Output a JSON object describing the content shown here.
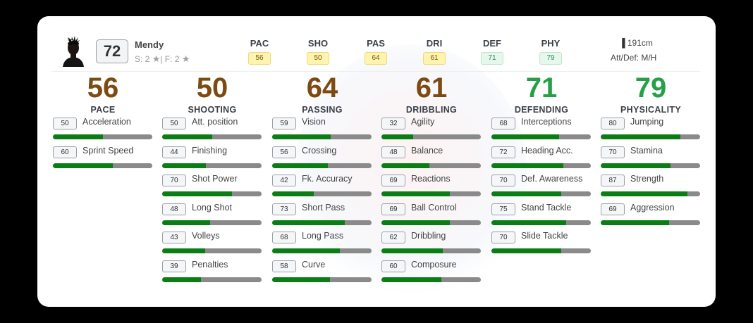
{
  "player": {
    "name": "Mendy",
    "overall": "72",
    "skills_text": "S: 2",
    "weak_foot_text": "| F: 2",
    "height": "191cm",
    "work_rates": "Att/Def: M/H"
  },
  "header_stats": [
    {
      "label": "PAC",
      "value": "56",
      "tone": "gold"
    },
    {
      "label": "SHO",
      "value": "50",
      "tone": "gold"
    },
    {
      "label": "PAS",
      "value": "64",
      "tone": "gold"
    },
    {
      "label": "DRI",
      "value": "61",
      "tone": "gold"
    },
    {
      "label": "DEF",
      "value": "71",
      "tone": "green"
    },
    {
      "label": "PHY",
      "value": "79",
      "tone": "green"
    }
  ],
  "categories": [
    {
      "value": "56",
      "title": "PACE",
      "tone": "gold",
      "attributes": [
        {
          "value": "50",
          "name": "Acceleration"
        },
        {
          "value": "60",
          "name": "Sprint Speed"
        }
      ]
    },
    {
      "value": "50",
      "title": "SHOOTING",
      "tone": "gold",
      "attributes": [
        {
          "value": "50",
          "name": "Att. position"
        },
        {
          "value": "44",
          "name": "Finishing"
        },
        {
          "value": "70",
          "name": "Shot Power"
        },
        {
          "value": "48",
          "name": "Long Shot"
        },
        {
          "value": "43",
          "name": "Volleys"
        },
        {
          "value": "39",
          "name": "Penalties"
        }
      ]
    },
    {
      "value": "64",
      "title": "PASSING",
      "tone": "gold",
      "attributes": [
        {
          "value": "59",
          "name": "Vision"
        },
        {
          "value": "56",
          "name": "Crossing"
        },
        {
          "value": "42",
          "name": "Fk. Accuracy"
        },
        {
          "value": "73",
          "name": "Short Pass"
        },
        {
          "value": "68",
          "name": "Long Pass"
        },
        {
          "value": "58",
          "name": "Curve"
        }
      ]
    },
    {
      "value": "61",
      "title": "DRIBBLING",
      "tone": "gold",
      "attributes": [
        {
          "value": "32",
          "name": "Agility"
        },
        {
          "value": "48",
          "name": "Balance"
        },
        {
          "value": "69",
          "name": "Reactions"
        },
        {
          "value": "69",
          "name": "Ball Control"
        },
        {
          "value": "62",
          "name": "Dribbling"
        },
        {
          "value": "60",
          "name": "Composure"
        }
      ]
    },
    {
      "value": "71",
      "title": "DEFENDING",
      "tone": "green",
      "attributes": [
        {
          "value": "68",
          "name": "Interceptions"
        },
        {
          "value": "72",
          "name": "Heading Acc."
        },
        {
          "value": "70",
          "name": "Def. Awareness"
        },
        {
          "value": "75",
          "name": "Stand Tackle"
        },
        {
          "value": "70",
          "name": "Slide Tackle"
        }
      ]
    },
    {
      "value": "79",
      "title": "PHYSICALITY",
      "tone": "green",
      "attributes": [
        {
          "value": "80",
          "name": "Jumping"
        },
        {
          "value": "70",
          "name": "Stamina"
        },
        {
          "value": "87",
          "name": "Strength"
        },
        {
          "value": "69",
          "name": "Aggression"
        }
      ]
    }
  ],
  "colors": {
    "gold_rating": "#7d4a12",
    "green_rating": "#26a046",
    "bar_fill": "#0a7d14",
    "bar_track": "#8a8a8a"
  }
}
